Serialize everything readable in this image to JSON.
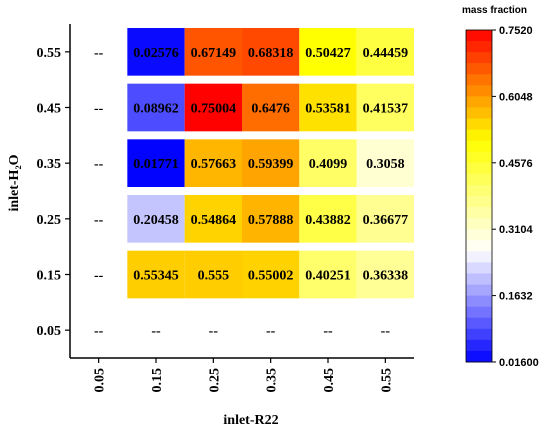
{
  "chart_data": {
    "type": "heatmap",
    "title": "",
    "xlabel": "inlet-R22",
    "ylabel": "inlet-H₂O",
    "x_categories": [
      "0.05",
      "0.15",
      "0.25",
      "0.35",
      "0.45",
      "0.55"
    ],
    "y_categories": [
      "0.55",
      "0.45",
      "0.35",
      "0.25",
      "0.15",
      "0.05"
    ],
    "missing_label": "--",
    "values": [
      [
        null,
        0.02576,
        0.67149,
        0.68318,
        0.50427,
        0.44459
      ],
      [
        null,
        0.08962,
        0.75004,
        0.6476,
        0.53581,
        0.41537
      ],
      [
        null,
        0.01771,
        0.57663,
        0.59399,
        0.4099,
        0.3058
      ],
      [
        null,
        0.20458,
        0.54864,
        0.57888,
        0.43882,
        0.36677
      ],
      [
        null,
        0.55345,
        0.555,
        0.55002,
        0.40251,
        0.36338
      ],
      [
        null,
        null,
        null,
        null,
        null,
        null
      ]
    ],
    "value_labels": [
      [
        "--",
        "0.02576",
        "0.67149",
        "0.68318",
        "0.50427",
        "0.44459"
      ],
      [
        "--",
        "0.08962",
        "0.75004",
        "0.6476",
        "0.53581",
        "0.41537"
      ],
      [
        "--",
        "0.01771",
        "0.57663",
        "0.59399",
        "0.4099",
        "0.3058"
      ],
      [
        "--",
        "0.20458",
        "0.54864",
        "0.57888",
        "0.43882",
        "0.36677"
      ],
      [
        "--",
        "0.55345",
        "0.555",
        "0.55002",
        "0.40251",
        "0.36338"
      ],
      [
        "--",
        "--",
        "--",
        "--",
        "--",
        "--"
      ]
    ],
    "colorbar": {
      "title": "mass fraction",
      "min": 0.016,
      "max": 0.752,
      "tick_labels": [
        "0.7520",
        "0.6048",
        "0.4576",
        "0.3104",
        "0.1632",
        "0.01600"
      ],
      "colors": [
        "#0000ff",
        "#ffffff",
        "#ffff00",
        "#ff0000"
      ]
    }
  }
}
